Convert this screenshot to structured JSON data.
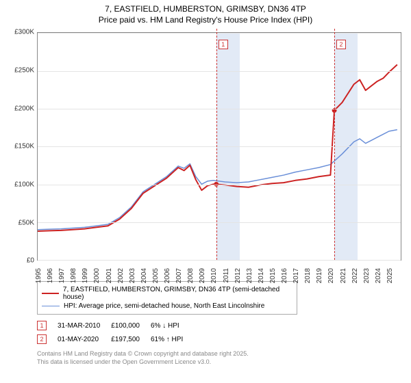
{
  "title": {
    "line1": "7, EASTFIELD, HUMBERSTON, GRIMSBY, DN36 4TP",
    "line2": "Price paid vs. HM Land Registry's House Price Index (HPI)"
  },
  "chart": {
    "type": "line",
    "background_color": "#ffffff",
    "grid_color": "#e4e4e4",
    "axis_color": "#888888",
    "label_fontsize": 10,
    "x": {
      "min": 1995,
      "max": 2026,
      "ticks": [
        1995,
        1996,
        1997,
        1998,
        1999,
        2000,
        2001,
        2002,
        2003,
        2004,
        2005,
        2006,
        2007,
        2008,
        2009,
        2010,
        2011,
        2012,
        2013,
        2014,
        2015,
        2016,
        2017,
        2018,
        2019,
        2020,
        2021,
        2022,
        2023,
        2024,
        2025
      ]
    },
    "y": {
      "min": 0,
      "max": 300000,
      "unit": "£",
      "suffix": "K",
      "ticks": [
        0,
        50000,
        100000,
        150000,
        200000,
        250000,
        300000
      ],
      "tick_labels": [
        "£0",
        "£50K",
        "£100K",
        "£150K",
        "£200K",
        "£250K",
        "£300K"
      ]
    },
    "shaded_ranges": [
      {
        "from": 2010.25,
        "to": 2012.25,
        "color": "rgba(173,196,230,0.35)"
      },
      {
        "from": 2020.33,
        "to": 2022.33,
        "color": "rgba(173,196,230,0.35)"
      }
    ],
    "annotations": [
      {
        "id": "1",
        "x": 2010.25,
        "box_y_offset": 10,
        "line_color": "#cc3333"
      },
      {
        "id": "2",
        "x": 2020.33,
        "box_y_offset": 10,
        "line_color": "#cc3333"
      }
    ],
    "series": [
      {
        "name": "price_paid",
        "label": "7, EASTFIELD, HUMBERSTON, GRIMSBY, DN36 4TP (semi-detached house)",
        "color": "#cc2222",
        "line_width": 2,
        "points": [
          [
            1995,
            38000
          ],
          [
            1996,
            38500
          ],
          [
            1997,
            39000
          ],
          [
            1998,
            40000
          ],
          [
            1999,
            41000
          ],
          [
            2000,
            43000
          ],
          [
            2001,
            45000
          ],
          [
            2002,
            54000
          ],
          [
            2003,
            68000
          ],
          [
            2004,
            88000
          ],
          [
            2005,
            98000
          ],
          [
            2006,
            108000
          ],
          [
            2007,
            122000
          ],
          [
            2007.5,
            118000
          ],
          [
            2008,
            125000
          ],
          [
            2008.5,
            106000
          ],
          [
            2009,
            92000
          ],
          [
            2009.5,
            98000
          ],
          [
            2010,
            100000
          ],
          [
            2010.25,
            100000
          ],
          [
            2011,
            99000
          ],
          [
            2012,
            97000
          ],
          [
            2013,
            96000
          ],
          [
            2014,
            99000
          ],
          [
            2015,
            101000
          ],
          [
            2016,
            102000
          ],
          [
            2017,
            105000
          ],
          [
            2018,
            107000
          ],
          [
            2019,
            110000
          ],
          [
            2020,
            112000
          ],
          [
            2020.33,
            197500
          ],
          [
            2021,
            208000
          ],
          [
            2022,
            232000
          ],
          [
            2022.5,
            238000
          ],
          [
            2023,
            224000
          ],
          [
            2023.5,
            230000
          ],
          [
            2024,
            236000
          ],
          [
            2024.5,
            240000
          ],
          [
            2025,
            248000
          ],
          [
            2025.7,
            258000
          ]
        ],
        "point_markers": [
          {
            "x": 2010.25,
            "y": 100000
          },
          {
            "x": 2020.33,
            "y": 197500
          }
        ]
      },
      {
        "name": "hpi",
        "label": "HPI: Average price, semi-detached house, North East Lincolnshire",
        "color": "#6a8fd8",
        "line_width": 1.5,
        "points": [
          [
            1995,
            40000
          ],
          [
            1996,
            40500
          ],
          [
            1997,
            41000
          ],
          [
            1998,
            42000
          ],
          [
            1999,
            43000
          ],
          [
            2000,
            45000
          ],
          [
            2001,
            47000
          ],
          [
            2002,
            56000
          ],
          [
            2003,
            70000
          ],
          [
            2004,
            90000
          ],
          [
            2005,
            100000
          ],
          [
            2006,
            110000
          ],
          [
            2007,
            124000
          ],
          [
            2007.5,
            121000
          ],
          [
            2008,
            127000
          ],
          [
            2008.5,
            110000
          ],
          [
            2009,
            100000
          ],
          [
            2009.5,
            104000
          ],
          [
            2010,
            105000
          ],
          [
            2011,
            103000
          ],
          [
            2012,
            102000
          ],
          [
            2013,
            103000
          ],
          [
            2014,
            106000
          ],
          [
            2015,
            109000
          ],
          [
            2016,
            112000
          ],
          [
            2017,
            116000
          ],
          [
            2018,
            119000
          ],
          [
            2019,
            122000
          ],
          [
            2020,
            126000
          ],
          [
            2021,
            140000
          ],
          [
            2022,
            156000
          ],
          [
            2022.5,
            160000
          ],
          [
            2023,
            154000
          ],
          [
            2023.5,
            158000
          ],
          [
            2024,
            162000
          ],
          [
            2024.5,
            166000
          ],
          [
            2025,
            170000
          ],
          [
            2025.7,
            172000
          ]
        ]
      }
    ]
  },
  "legend": {
    "rows": [
      {
        "color": "#cc2222",
        "width": 2,
        "label_path": "chart.series.0.label"
      },
      {
        "color": "#6a8fd8",
        "width": 1.5,
        "label_path": "chart.series.1.label"
      }
    ]
  },
  "events": [
    {
      "id": "1",
      "date": "31-MAR-2010",
      "price": "£100,000",
      "change": "6% ↓ HPI"
    },
    {
      "id": "2",
      "date": "01-MAY-2020",
      "price": "£197,500",
      "change": "61% ↑ HPI"
    }
  ],
  "footer": {
    "line1": "Contains HM Land Registry data © Crown copyright and database right 2025.",
    "line2": "This data is licensed under the Open Government Licence v3.0."
  }
}
